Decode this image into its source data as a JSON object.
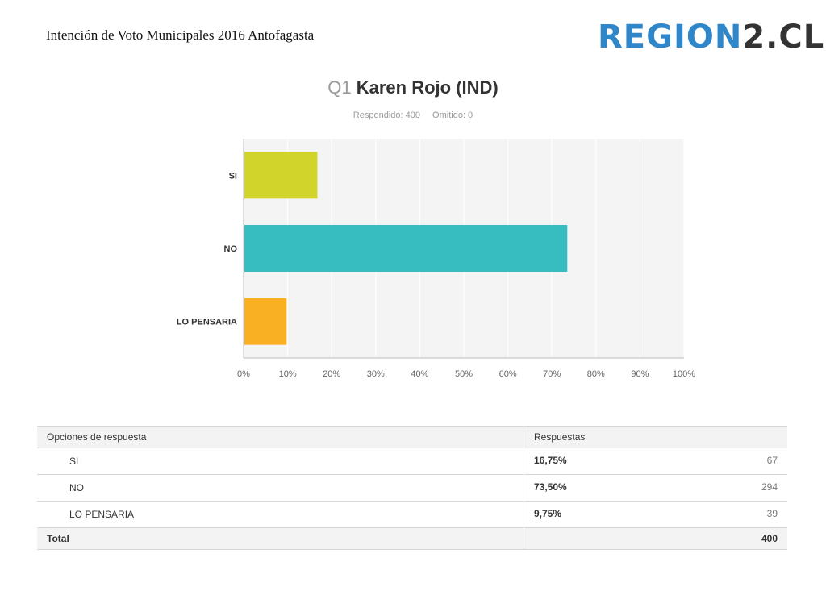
{
  "header": {
    "document_title": "Intención de Voto Municipales 2016 Antofagasta",
    "logo_part1": "REGION",
    "logo_part2": "2.CL"
  },
  "question": {
    "number": "Q1",
    "title": "Karen Rojo (IND)",
    "answered_label": "Respondido: 400",
    "skipped_label": "Omitido: 0"
  },
  "chart_data": {
    "type": "bar",
    "orientation": "horizontal",
    "categories": [
      "SI",
      "NO",
      "LO PENSARIA"
    ],
    "values": [
      16.75,
      73.5,
      9.75
    ],
    "colors": [
      "#d1d42b",
      "#37bdbf",
      "#f9b123"
    ],
    "xlim": [
      0,
      100
    ],
    "ticks": [
      "0%",
      "10%",
      "20%",
      "30%",
      "40%",
      "50%",
      "60%",
      "70%",
      "80%",
      "90%",
      "100%"
    ],
    "grid": true
  },
  "table": {
    "headers": [
      "Opciones de respuesta",
      "Respuestas"
    ],
    "rows": [
      {
        "option": "SI",
        "percent": "16,75%",
        "count": "67"
      },
      {
        "option": "NO",
        "percent": "73,50%",
        "count": "294"
      },
      {
        "option": "LO PENSARIA",
        "percent": "9,75%",
        "count": "39"
      }
    ],
    "total_label": "Total",
    "total_value": "400"
  }
}
